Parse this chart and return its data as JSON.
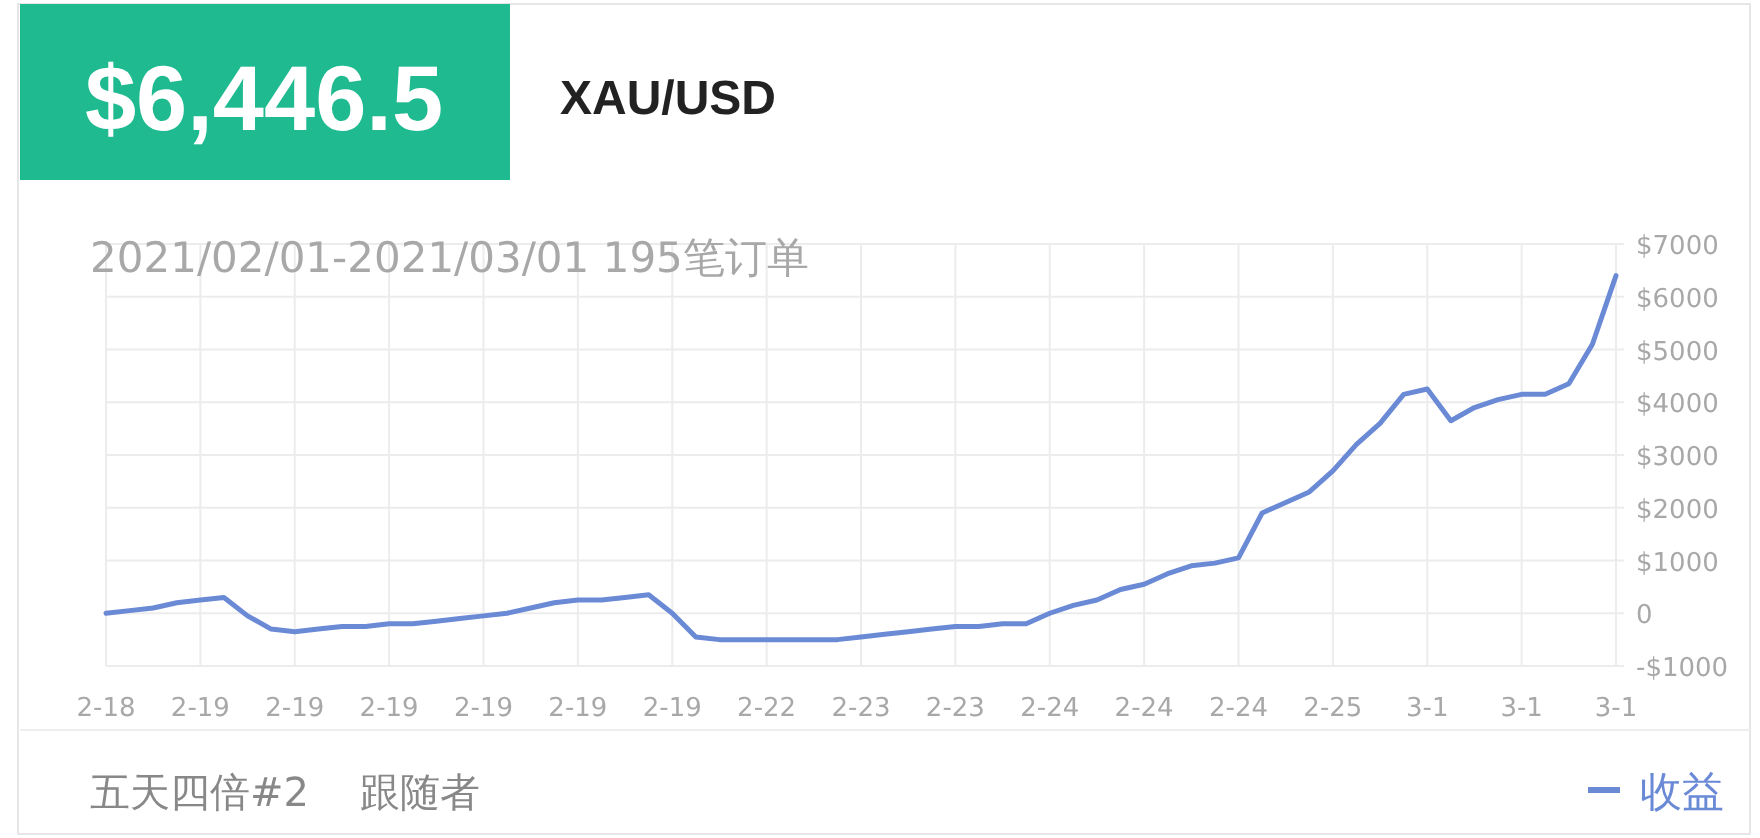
{
  "chart_data": {
    "type": "line",
    "title": "$6,446.5",
    "subtitle": "XAU/USD",
    "annotations": [
      "2021/02/01-2021/03/01 195笔订单",
      "五天四倍#2",
      "跟随者"
    ],
    "categories": [
      "2-18",
      null,
      null,
      null,
      "2-19",
      null,
      null,
      null,
      "2-19",
      null,
      null,
      null,
      "2-19",
      null,
      null,
      null,
      "2-19",
      null,
      null,
      null,
      "2-19",
      null,
      null,
      null,
      "2-19",
      null,
      null,
      null,
      "2-22",
      null,
      null,
      null,
      "2-23",
      null,
      null,
      null,
      "2-23",
      null,
      null,
      null,
      "2-24",
      null,
      null,
      null,
      "2-24",
      null,
      null,
      null,
      "2-24",
      null,
      null,
      null,
      "2-25",
      null,
      null,
      null,
      "3-1",
      null,
      null,
      null,
      "3-1",
      null,
      null,
      null,
      "3-1"
    ],
    "series": [
      {
        "name": "收益",
        "color": "#6b8ad6",
        "values": [
          0,
          50,
          100,
          200,
          250,
          300,
          -50,
          -300,
          -350,
          -300,
          -250,
          -250,
          -200,
          -200,
          -150,
          -100,
          -50,
          0,
          100,
          200,
          250,
          250,
          300,
          350,
          0,
          -450,
          -500,
          -500,
          -500,
          -500,
          -500,
          -500,
          -450,
          -400,
          -350,
          -300,
          -250,
          -250,
          -200,
          -200,
          0,
          150,
          250,
          450,
          550,
          750,
          900,
          950,
          1050,
          1900,
          2100,
          2300,
          2700,
          3200,
          3600,
          4150,
          4250,
          3650,
          3900,
          4050,
          4150,
          4150,
          4350,
          5100,
          6400
        ]
      }
    ],
    "ylim": [
      -1000,
      7000
    ],
    "yticks": [
      {
        "value": -1000,
        "label": "-$1000"
      },
      {
        "value": 0,
        "label": "0"
      },
      {
        "value": 1000,
        "label": "$1000"
      },
      {
        "value": 2000,
        "label": "$2000"
      },
      {
        "value": 3000,
        "label": "$3000"
      },
      {
        "value": 4000,
        "label": "$4000"
      },
      {
        "value": 5000,
        "label": "$5000"
      },
      {
        "value": 6000,
        "label": "$6000"
      },
      {
        "value": 7000,
        "label": "$7000"
      }
    ],
    "grid": true,
    "legend": "bottom right",
    "marker": "none",
    "line_style": "solid"
  }
}
